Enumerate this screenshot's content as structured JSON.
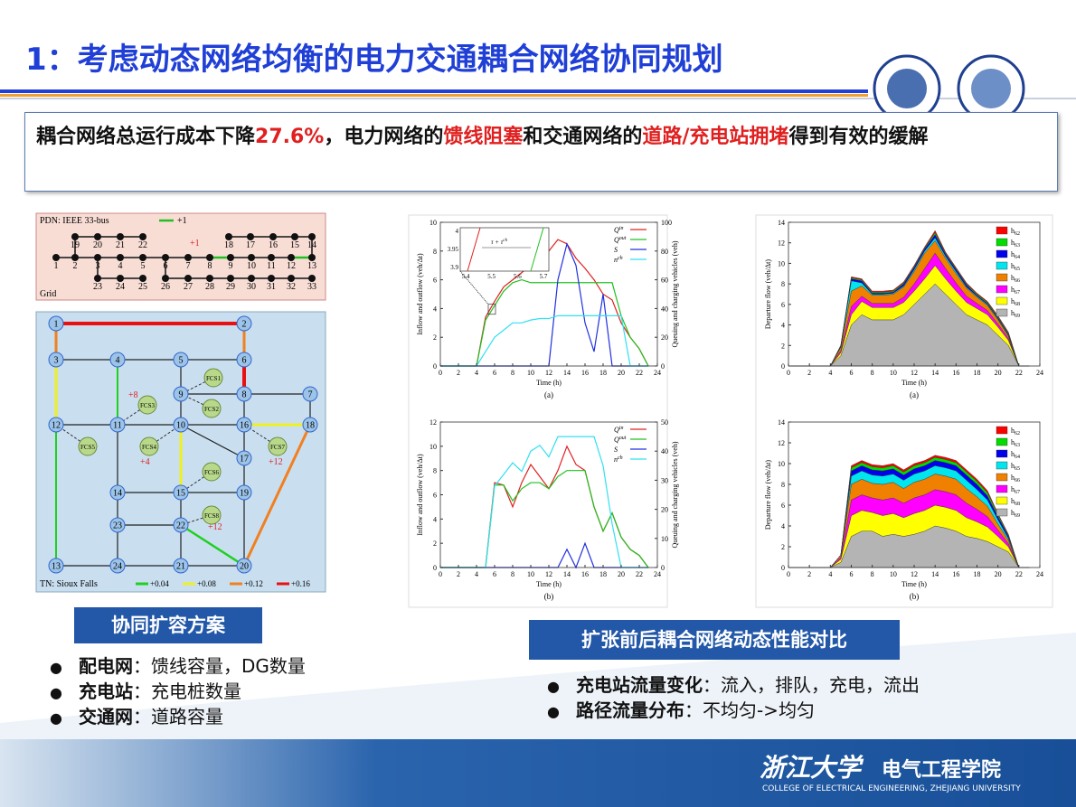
{
  "header": {
    "title": "1：考虑动态网络均衡的电力交通耦合网络协同规划"
  },
  "summary": {
    "parts": [
      {
        "text": "耦合网络总运行成本下降",
        "highlight": false
      },
      {
        "text": "27.6%",
        "highlight": true
      },
      {
        "text": "，电力网络的",
        "highlight": false
      },
      {
        "text": "馈线阻塞",
        "highlight": true
      },
      {
        "text": "和交通网络的",
        "highlight": false
      },
      {
        "text": "道路/充电站拥堵",
        "highlight": true
      },
      {
        "text": "得到有效的缓解",
        "highlight": false
      }
    ]
  },
  "network": {
    "pdn_label": "PDN: IEEE 33-bus",
    "pdn_legend": "+1",
    "grid": "Grid",
    "pdn_annotation": "+1",
    "pdn_nodes": [
      "1",
      "2",
      "3",
      "4",
      "5",
      "6",
      "7",
      "8",
      "9",
      "10",
      "11",
      "12",
      "13",
      "14",
      "15",
      "16",
      "17",
      "18",
      "19",
      "20",
      "21",
      "22",
      "23",
      "24",
      "25",
      "26",
      "27",
      "28",
      "29",
      "30",
      "31",
      "32",
      "33"
    ],
    "tn_label": "TN: Sioux Falls",
    "tn_legend": [
      "+0.04",
      "+0.08",
      "+0.12",
      "+0.16"
    ],
    "tn_nodes": [
      "1",
      "2",
      "3",
      "4",
      "5",
      "6",
      "7",
      "8",
      "9",
      "10",
      "11",
      "12",
      "13",
      "14",
      "15",
      "16",
      "17",
      "18",
      "19",
      "20",
      "21",
      "22",
      "23",
      "24"
    ],
    "fcs": [
      "FCS1",
      "FCS2",
      "FCS3",
      "FCS4",
      "FCS5",
      "FCS6",
      "FCS7",
      "FCS8"
    ],
    "annotations": [
      "+8",
      "+4",
      "+12",
      "+12"
    ]
  },
  "left_section": {
    "title": "协同扩容方案",
    "items": [
      {
        "term": "配电网",
        "text": "：馈线容量，DG数量"
      },
      {
        "term": "充电站",
        "text": "：充电桩数量"
      },
      {
        "term": "交通网",
        "text": "：道路容量"
      }
    ]
  },
  "right_section": {
    "title": "扩张前后耦合网络动态性能对比",
    "items": [
      {
        "term": "充电站流量变化",
        "text": "：流入，排队，充电，流出"
      },
      {
        "term": "路径流量分布",
        "text": "：不均匀->均匀"
      }
    ]
  },
  "figures": [
    {
      "type": "line",
      "caption": "(a)",
      "xlabel": "Time (h)",
      "ylabel": "Inflow and outflow (veh/Δt)",
      "y2label": "Queuing and charging vehicles (veh)",
      "xlim": [
        0,
        24
      ],
      "xticks": [
        0,
        2,
        4,
        6,
        8,
        10,
        12,
        14,
        16,
        18,
        20,
        22,
        24
      ],
      "ylim": [
        0,
        10
      ],
      "yticks": [
        0,
        2,
        4,
        6,
        8,
        10
      ],
      "y2lim": [
        0,
        100
      ],
      "y2ticks": [
        0,
        20,
        40,
        60,
        80,
        100
      ],
      "x": [
        0,
        2,
        4,
        5,
        6,
        7,
        8,
        9,
        10,
        11,
        12,
        13,
        14,
        15,
        16,
        17,
        18,
        19,
        20,
        21,
        22,
        23
      ],
      "series": [
        {
          "name": "Q",
          "sup": "in",
          "color": "#e02020",
          "values": [
            0,
            0,
            0,
            3.4,
            4.5,
            5.5,
            6,
            6.5,
            7,
            8.5,
            8,
            8.8,
            8.5,
            7.5,
            6.8,
            6,
            5,
            4.6,
            3,
            2,
            1.2,
            0
          ]
        },
        {
          "name": "Q",
          "sup": "out",
          "color": "#20c020",
          "values": [
            0,
            0,
            0,
            3.2,
            4.2,
            5.2,
            5.8,
            6,
            5.8,
            5.8,
            5.8,
            5.8,
            5.8,
            5.8,
            5.8,
            5.8,
            5.8,
            5.8,
            3.5,
            2,
            1.2,
            0
          ]
        },
        {
          "name": "S",
          "sup": "",
          "color": "#2030e0",
          "values": [
            0,
            0,
            0,
            0,
            0,
            0,
            0,
            0,
            0,
            0,
            0,
            6,
            8.5,
            7,
            3,
            1,
            5,
            0,
            0,
            0,
            0,
            0
          ]
        },
        {
          "name": "n",
          "sup": "ch",
          "color": "#30e0f0",
          "axis": "y2",
          "values": [
            0,
            0,
            0,
            10,
            20,
            25,
            30,
            30,
            32,
            33,
            33,
            35,
            35,
            35,
            35,
            35,
            35,
            35,
            35,
            0,
            0,
            0
          ]
        }
      ],
      "inset": {
        "yticks": [
          4,
          3.95,
          3.9
        ],
        "xticks": [
          5.4,
          5.5,
          5.6,
          5.7
        ],
        "label": "τ + τ",
        "label_sup": "ch"
      }
    },
    {
      "type": "line",
      "caption": "(b)",
      "xlabel": "Time (h)",
      "ylabel": "Inflow and outflow (veh/Δt)",
      "y2label": "Queuing and charging vehicles (veh)",
      "xlim": [
        0,
        24
      ],
      "xticks": [
        0,
        2,
        4,
        6,
        8,
        10,
        12,
        14,
        16,
        18,
        20,
        22,
        24
      ],
      "ylim": [
        0,
        12
      ],
      "yticks": [
        0,
        2,
        4,
        6,
        8,
        10,
        12
      ],
      "y2lim": [
        0,
        50
      ],
      "y2ticks": [
        0,
        10,
        20,
        30,
        40,
        50
      ],
      "x": [
        0,
        2,
        4,
        5,
        6,
        7,
        8,
        9,
        10,
        11,
        12,
        13,
        14,
        15,
        16,
        17,
        18,
        19,
        20,
        21,
        22,
        23
      ],
      "series": [
        {
          "name": "Q",
          "sup": "in",
          "color": "#e02020",
          "values": [
            0,
            0,
            0,
            0,
            7,
            6.8,
            5,
            7,
            8.5,
            7.5,
            6.5,
            8,
            10,
            8.5,
            8,
            5,
            3,
            4.5,
            2.5,
            1.5,
            1,
            0
          ]
        },
        {
          "name": "Q",
          "sup": "out",
          "color": "#20c020",
          "values": [
            0,
            0,
            0,
            0,
            6.8,
            6.8,
            5.5,
            6.5,
            7,
            7,
            6.5,
            7.5,
            8,
            8,
            8,
            5,
            3,
            4.5,
            2.5,
            1.5,
            1,
            0
          ]
        },
        {
          "name": "S",
          "sup": "",
          "color": "#2030e0",
          "values": [
            0,
            0,
            0,
            0,
            0,
            0,
            0,
            0,
            0,
            0,
            0,
            0,
            1.5,
            0,
            2,
            0,
            0,
            0,
            0,
            0,
            0,
            0
          ]
        },
        {
          "name": "n",
          "sup": "ch",
          "color": "#30e0f0",
          "axis": "y2",
          "values": [
            0,
            0,
            0,
            0,
            28,
            32,
            36,
            33,
            40,
            42,
            38,
            45,
            45,
            45,
            45,
            45,
            35,
            15,
            0,
            0,
            0,
            0
          ]
        }
      ]
    },
    {
      "type": "area",
      "caption": "(a)",
      "xlabel": "Time (h)",
      "ylabel": "Departure flow (veh/Δt)",
      "xlim": [
        0,
        24
      ],
      "xticks": [
        0,
        2,
        4,
        6,
        8,
        10,
        12,
        14,
        16,
        18,
        20,
        22,
        24
      ],
      "ylim": [
        0,
        14
      ],
      "yticks": [
        0,
        2,
        4,
        6,
        8,
        10,
        12,
        14
      ],
      "x": [
        0,
        2,
        4,
        5,
        6,
        7,
        8,
        9,
        10,
        11,
        12,
        13,
        14,
        15,
        16,
        17,
        18,
        19,
        20,
        21,
        22,
        23
      ],
      "series": [
        {
          "name": "h",
          "sub": "62",
          "color": "#ff0000",
          "values": [
            0,
            0,
            0,
            0,
            0.1,
            0.1,
            0.1,
            0.1,
            0.1,
            0.1,
            0.1,
            0.1,
            0.2,
            0.1,
            0.1,
            0.1,
            0.1,
            0.1,
            0.1,
            0.1,
            0,
            0
          ]
        },
        {
          "name": "h",
          "sub": "63",
          "color": "#00dd00",
          "values": [
            0,
            0,
            0,
            0,
            0.1,
            0.1,
            0.1,
            0.1,
            0.1,
            0.1,
            0.1,
            0.1,
            0.2,
            0.1,
            0.1,
            0.1,
            0.1,
            0.1,
            0.1,
            0.1,
            0,
            0
          ]
        },
        {
          "name": "h",
          "sub": "64",
          "color": "#0000ee",
          "values": [
            0,
            0,
            0,
            0.1,
            0.2,
            0.2,
            0.1,
            0.1,
            0.1,
            0.2,
            0.2,
            0.2,
            0.3,
            0.2,
            0.2,
            0.2,
            0.1,
            0.1,
            0.1,
            0.1,
            0,
            0
          ]
        },
        {
          "name": "h",
          "sub": "65",
          "color": "#00e5ee",
          "values": [
            0,
            0,
            0,
            0.1,
            1,
            0.3,
            0.1,
            0.1,
            0.1,
            0.1,
            0.2,
            0.2,
            0.3,
            0.2,
            0.2,
            0.1,
            0.1,
            0.1,
            0.1,
            0.1,
            0,
            0
          ]
        },
        {
          "name": "h",
          "sub": "66",
          "color": "#f08000",
          "values": [
            0,
            0,
            0,
            0.3,
            1.5,
            1,
            0.8,
            0.8,
            0.9,
            1,
            1.2,
            1.5,
            1.2,
            1,
            0.9,
            0.8,
            0.6,
            0.5,
            0.4,
            0.2,
            0,
            0
          ]
        },
        {
          "name": "h",
          "sub": "67",
          "color": "#ff00ff",
          "values": [
            0,
            0,
            0,
            0.2,
            0.8,
            0.5,
            0.4,
            0.4,
            0.4,
            0.5,
            0.7,
            1,
            1.2,
            1,
            0.8,
            0.6,
            0.5,
            0.4,
            0.3,
            0.2,
            0,
            0
          ]
        },
        {
          "name": "h",
          "sub": "68",
          "color": "#ffff00",
          "values": [
            0,
            0,
            0,
            0.3,
            1,
            1.3,
            1.2,
            1.2,
            1.2,
            1.2,
            1.3,
            1.5,
            1.8,
            1.5,
            1.3,
            1.2,
            1.1,
            1,
            0.8,
            0.5,
            0,
            0
          ]
        },
        {
          "name": "h",
          "sub": "69",
          "color": "#b4b4b4",
          "values": [
            0,
            0,
            0,
            1,
            4,
            5,
            4.5,
            4.5,
            4.5,
            5,
            6,
            7,
            8,
            7,
            6,
            5,
            4.5,
            4,
            3,
            2,
            0,
            0
          ]
        }
      ]
    },
    {
      "type": "area",
      "caption": "(b)",
      "xlabel": "Time (h)",
      "ylabel": "Departure flow (veh/Δt)",
      "xlim": [
        0,
        24
      ],
      "xticks": [
        0,
        2,
        4,
        6,
        8,
        10,
        12,
        14,
        16,
        18,
        20,
        22,
        24
      ],
      "ylim": [
        0,
        14
      ],
      "yticks": [
        0,
        2,
        4,
        6,
        8,
        10,
        12,
        14
      ],
      "x": [
        0,
        2,
        4,
        5,
        6,
        7,
        8,
        9,
        10,
        11,
        12,
        13,
        14,
        15,
        16,
        17,
        18,
        19,
        20,
        21,
        22,
        23
      ],
      "series": [
        {
          "name": "h",
          "sub": "62",
          "color": "#ff0000",
          "values": [
            0,
            0,
            0,
            0,
            0.2,
            0.2,
            0.2,
            0.2,
            0.2,
            0.2,
            0.2,
            0.2,
            0.2,
            0.2,
            0.2,
            0.2,
            0.2,
            0.2,
            0.1,
            0.1,
            0,
            0
          ]
        },
        {
          "name": "h",
          "sub": "63",
          "color": "#00dd00",
          "values": [
            0,
            0,
            0,
            0,
            0.3,
            0.3,
            0.3,
            0.3,
            0.3,
            0.3,
            0.3,
            0.3,
            0.3,
            0.3,
            0.3,
            0.3,
            0.3,
            0.3,
            0.2,
            0.1,
            0,
            0
          ]
        },
        {
          "name": "h",
          "sub": "64",
          "color": "#0000ee",
          "values": [
            0,
            0,
            0,
            0,
            0.5,
            0.5,
            0.5,
            0.5,
            0.5,
            0.5,
            0.5,
            0.5,
            0.5,
            0.5,
            0.5,
            0.5,
            0.5,
            0.4,
            0.3,
            0.2,
            0,
            0
          ]
        },
        {
          "name": "h",
          "sub": "65",
          "color": "#00e5ee",
          "values": [
            0,
            0,
            0,
            0,
            0.8,
            0.8,
            0.8,
            0.8,
            0.8,
            0.8,
            0.8,
            0.8,
            0.8,
            0.8,
            0.8,
            0.8,
            0.7,
            0.6,
            0.4,
            0.2,
            0,
            0
          ]
        },
        {
          "name": "h",
          "sub": "66",
          "color": "#f08000",
          "values": [
            0,
            0,
            0,
            0.2,
            1.5,
            1.5,
            1.4,
            1.5,
            1.5,
            1.4,
            1.5,
            1.5,
            1.5,
            1.5,
            1.5,
            1.4,
            1.2,
            1,
            0.6,
            0.3,
            0,
            0
          ]
        },
        {
          "name": "h",
          "sub": "67",
          "color": "#ff00ff",
          "values": [
            0,
            0,
            0,
            0.2,
            1.5,
            1.5,
            1.4,
            1.5,
            1.5,
            1.4,
            1.5,
            1.5,
            1.5,
            1.5,
            1.5,
            1.4,
            1.2,
            1,
            0.6,
            0.3,
            0,
            0
          ]
        },
        {
          "name": "h",
          "sub": "68",
          "color": "#ffff00",
          "values": [
            0,
            0,
            0,
            0.3,
            2,
            2,
            1.8,
            2,
            2,
            1.8,
            2,
            2,
            2,
            2,
            2,
            1.8,
            1.6,
            1.4,
            1,
            0.5,
            0,
            0
          ]
        },
        {
          "name": "h",
          "sub": "69",
          "color": "#b4b4b4",
          "values": [
            0,
            0,
            0,
            0.5,
            3,
            3.5,
            3.5,
            3,
            3.2,
            3,
            3.2,
            3.5,
            4,
            3.8,
            3.5,
            3,
            2.8,
            2.5,
            2,
            1.5,
            0,
            0
          ]
        }
      ]
    }
  ],
  "footer": {
    "school": "浙江大学",
    "dept": "电气工程学院",
    "english": "COLLEGE OF ELECTRICAL ENGINEERING, ZHEJIANG UNIVERSITY"
  }
}
